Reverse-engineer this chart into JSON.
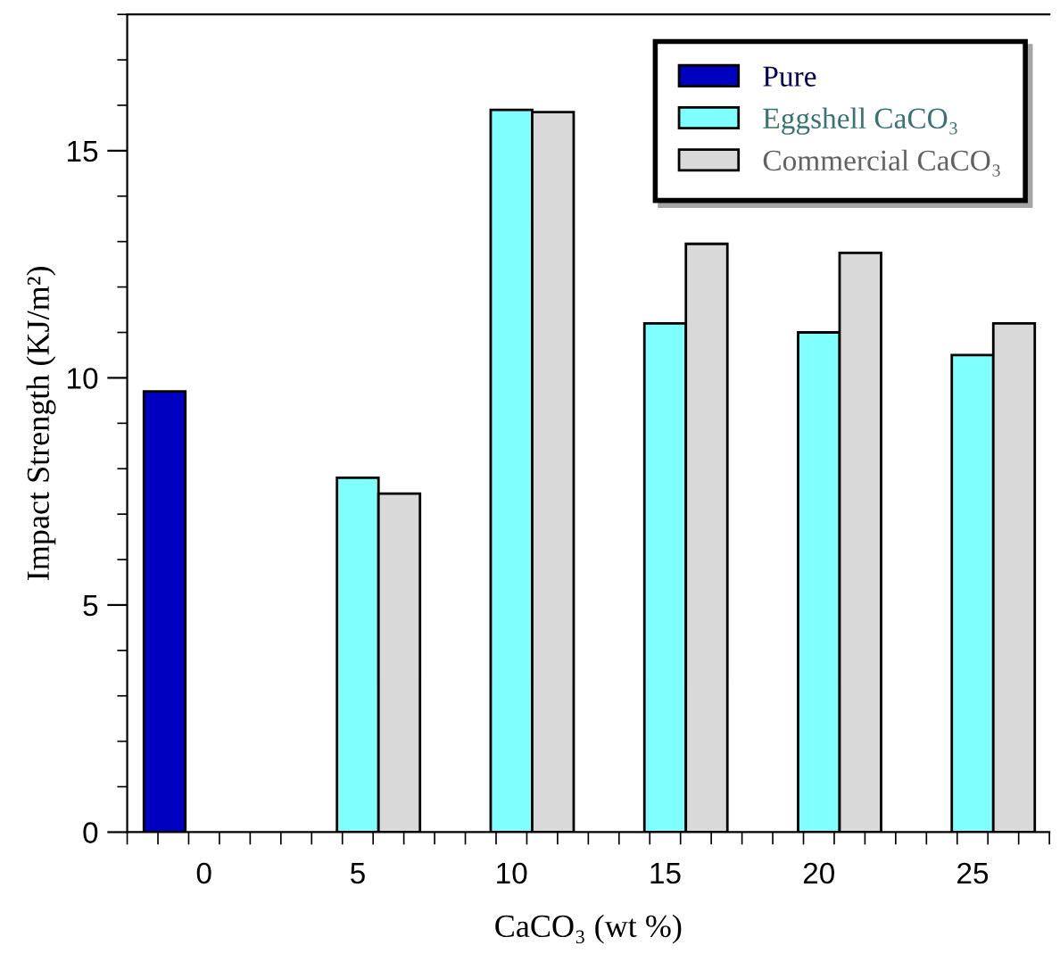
{
  "chart_data": {
    "type": "bar",
    "xlabel": "CaCO₃ (wt %)",
    "ylabel": "Impact Strength (KJ/m²)",
    "categories": [
      "0",
      "5",
      "10",
      "15",
      "20",
      "25"
    ],
    "series": [
      {
        "name": "Pure",
        "color": "#0000c0",
        "values": [
          9.7,
          null,
          null,
          null,
          null,
          null
        ]
      },
      {
        "name": "Eggshell CaCO₃",
        "color": "#80ffff",
        "values": [
          null,
          7.8,
          15.9,
          11.2,
          11.0,
          10.5
        ]
      },
      {
        "name": "Commercial CaCO₃",
        "color": "#d9d9d9",
        "values": [
          null,
          7.45,
          15.85,
          12.95,
          12.75,
          11.2
        ]
      }
    ],
    "ylim": [
      0,
      18
    ],
    "yticks": [
      0,
      5,
      10,
      15
    ],
    "grid": false,
    "legend": "top right"
  }
}
